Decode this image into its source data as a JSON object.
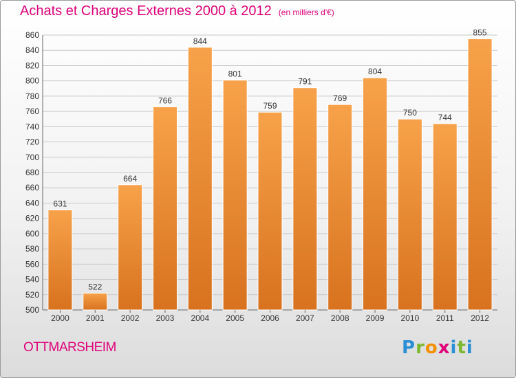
{
  "header": {
    "title": "Achats et Charges Externes 2000 à 2012",
    "unit": "(en milliers d'€)"
  },
  "footer": {
    "commune": "OTTMARSHEIM",
    "logo": {
      "letters": [
        "P",
        "r",
        "o",
        "x",
        "i",
        "t",
        "i"
      ],
      "colors": [
        "#2a8fd6",
        "#7cb82f",
        "#f39200",
        "#e0007a",
        "#2a8fd6",
        "#7cb82f",
        "#2a8fd6"
      ]
    }
  },
  "colors": {
    "title": "#e0007a",
    "bar_top": "#f7a24a",
    "bar_bottom": "#d8721f",
    "grid": "#c8c8c8"
  },
  "chart_data": {
    "type": "bar",
    "categories": [
      "2000",
      "2001",
      "2002",
      "2003",
      "2004",
      "2005",
      "2006",
      "2007",
      "2008",
      "2009",
      "2010",
      "2011",
      "2012"
    ],
    "values": [
      631,
      522,
      664,
      766,
      844,
      801,
      759,
      791,
      769,
      804,
      750,
      744,
      855
    ],
    "ylim": [
      500,
      860
    ],
    "yticks": [
      500,
      520,
      540,
      560,
      580,
      600,
      620,
      640,
      660,
      680,
      700,
      720,
      740,
      760,
      780,
      800,
      820,
      840,
      860
    ],
    "grid": true,
    "title": "Achats et Charges Externes 2000 à 2012",
    "xlabel": "",
    "ylabel": ""
  }
}
